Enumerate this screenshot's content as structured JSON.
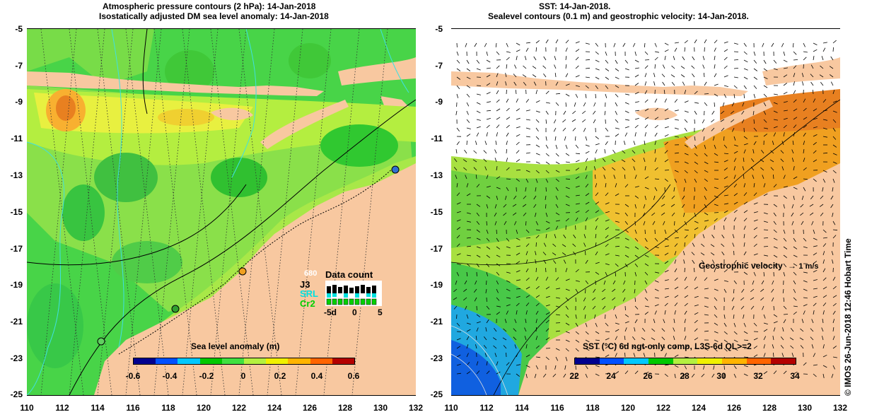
{
  "left": {
    "title_line1": "Atmospheric pressure contours (2 hPa): 14-Jan-2018",
    "title_line2": "Isostatically adjusted DM sea level anomaly: 14-Jan-2018",
    "colorbar_title": "Sea level anomaly (m)",
    "colorbar_ticks": [
      "-0.6",
      "-0.4",
      "-0.2",
      "0",
      "0.2",
      "0.4",
      "0.6"
    ],
    "colorbar_colors": [
      "#00008f",
      "#0050ff",
      "#00c8ff",
      "#00c800",
      "#40e040",
      "#b4f040",
      "#f0f000",
      "#ffb400",
      "#ff6400",
      "#b40000"
    ],
    "data_count_title": "Data count",
    "data_count_labels": [
      "J3",
      "SRL",
      "Cr2"
    ],
    "data_count_small": "680",
    "data_count_axis": [
      "-5d",
      "0",
      "5"
    ],
    "legend_colors": {
      "J3": "#000000",
      "SRL": "#00e0e0",
      "Cr2": "#00d000"
    }
  },
  "right": {
    "title_line1": "SST: 14-Jan-2018.",
    "title_line2": "Sealevel contours (0.1 m) and geostrophic velocity: 14-Jan-2018.",
    "colorbar_title": "SST (°C) 6d ngt-only comp, L3S-6d QL>=2",
    "colorbar_ticks": [
      "22",
      "24",
      "26",
      "28",
      "30",
      "32",
      "34"
    ],
    "colorbar_colors": [
      "#00008f",
      "#0050ff",
      "#00c8ff",
      "#00c800",
      "#b4f040",
      "#f0f000",
      "#ffb400",
      "#ff6400",
      "#b40000"
    ],
    "velocity_label": "Geostrophic velocity",
    "velocity_unit": "1 m/s"
  },
  "y_ticks": [
    "-5",
    "-7",
    "-9",
    "-11",
    "-13",
    "-15",
    "-17",
    "-19",
    "-21",
    "-23",
    "-25"
  ],
  "x_ticks": [
    "110",
    "112",
    "114",
    "116",
    "118",
    "120",
    "122",
    "124",
    "126",
    "128",
    "130",
    "132"
  ],
  "credit": "© IMOS 26-Jun-2018 12:46 Hobart Time",
  "colors": {
    "land": "#f8c8a0",
    "sea_green": "#48d448",
    "sea_light": "#a8e848"
  }
}
